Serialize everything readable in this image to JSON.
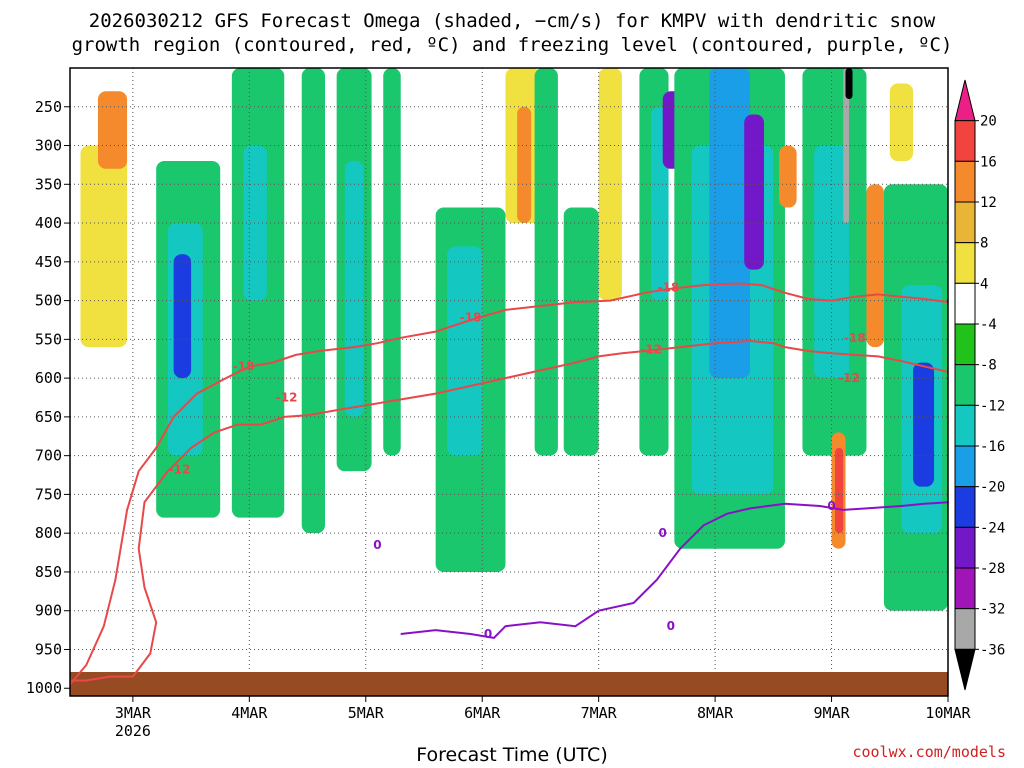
{
  "chart_data": {
    "type": "heatmap",
    "title_line1": "2026030212 GFS Forecast Omega (shaded, −cm/s) for KMPV with dendritic snow",
    "title_line2": "growth region (contoured, red, ºC) and freezing level (contoured, purple, ºC)",
    "xlabel": "Forecast Time (UTC)",
    "credit": "coolwx.com/models",
    "x_ticks": [
      {
        "label": "3MAR",
        "sub": "2026",
        "day": 3
      },
      {
        "label": "4MAR",
        "sub": "",
        "day": 4
      },
      {
        "label": "5MAR",
        "sub": "",
        "day": 5
      },
      {
        "label": "6MAR",
        "sub": "",
        "day": 6
      },
      {
        "label": "7MAR",
        "sub": "",
        "day": 7
      },
      {
        "label": "8MAR",
        "sub": "",
        "day": 8
      },
      {
        "label": "9MAR",
        "sub": "",
        "day": 9
      },
      {
        "label": "10MAR",
        "sub": "",
        "day": 10
      }
    ],
    "xlim": [
      2.46,
      10.0
    ],
    "y_ticks": [
      250,
      300,
      350,
      400,
      450,
      500,
      550,
      600,
      650,
      700,
      750,
      800,
      850,
      900,
      950,
      1000
    ],
    "ylim": [
      200,
      1000
    ],
    "colorbar": {
      "levels": [
        20,
        16,
        12,
        8,
        4,
        -4,
        -8,
        -12,
        -16,
        -20,
        -24,
        -28,
        -32,
        -36
      ],
      "colors": [
        "#ec1f86",
        "#f2443e",
        "#f58a2c",
        "#e8b535",
        "#f0e040",
        "#ffffff",
        "#21c21a",
        "#1bc76d",
        "#14c7c0",
        "#1a9ee8",
        "#1a3ce0",
        "#7318c8",
        "#a014b8",
        "#a8a8a8",
        "#000000"
      ]
    },
    "series": [
      {
        "name": "-18",
        "color": "#e84848",
        "points": [
          [
            2.46,
            995
          ],
          [
            2.6,
            970
          ],
          [
            2.75,
            920
          ],
          [
            2.85,
            860
          ],
          [
            2.95,
            770
          ],
          [
            3.05,
            720
          ],
          [
            3.2,
            690
          ],
          [
            3.35,
            650
          ],
          [
            3.55,
            620
          ],
          [
            3.8,
            600
          ],
          [
            4.0,
            585
          ],
          [
            4.2,
            580
          ],
          [
            4.4,
            570
          ],
          [
            4.6,
            565
          ],
          [
            4.9,
            560
          ],
          [
            5.1,
            555
          ],
          [
            5.3,
            548
          ],
          [
            5.6,
            540
          ],
          [
            5.9,
            525
          ],
          [
            6.2,
            512
          ],
          [
            6.5,
            507
          ],
          [
            6.8,
            502
          ],
          [
            7.1,
            500
          ],
          [
            7.4,
            490
          ],
          [
            7.6,
            485
          ],
          [
            7.9,
            480
          ],
          [
            8.2,
            478
          ],
          [
            8.4,
            480
          ],
          [
            8.5,
            485
          ],
          [
            8.6,
            490
          ],
          [
            8.8,
            498
          ],
          [
            9.0,
            500
          ],
          [
            9.2,
            495
          ],
          [
            9.4,
            492
          ],
          [
            9.6,
            495
          ],
          [
            9.8,
            498
          ],
          [
            10.0,
            502
          ]
        ]
      },
      {
        "name": "-12",
        "color": "#e84848",
        "points": [
          [
            2.46,
            990
          ],
          [
            2.6,
            990
          ],
          [
            2.8,
            985
          ],
          [
            3.0,
            985
          ],
          [
            3.15,
            955
          ],
          [
            3.2,
            915
          ],
          [
            3.1,
            870
          ],
          [
            3.05,
            820
          ],
          [
            3.1,
            760
          ],
          [
            3.3,
            720
          ],
          [
            3.5,
            690
          ],
          [
            3.7,
            670
          ],
          [
            3.9,
            660
          ],
          [
            4.1,
            660
          ],
          [
            4.3,
            650
          ],
          [
            4.5,
            648
          ],
          [
            4.8,
            640
          ],
          [
            5.0,
            635
          ],
          [
            5.2,
            630
          ],
          [
            5.4,
            625
          ],
          [
            5.6,
            620
          ],
          [
            5.9,
            610
          ],
          [
            6.2,
            600
          ],
          [
            6.5,
            590
          ],
          [
            6.8,
            580
          ],
          [
            7.0,
            572
          ],
          [
            7.2,
            568
          ],
          [
            7.4,
            565
          ],
          [
            7.7,
            560
          ],
          [
            8.0,
            555
          ],
          [
            8.3,
            552
          ],
          [
            8.5,
            555
          ],
          [
            8.6,
            560
          ],
          [
            8.8,
            565
          ],
          [
            9.0,
            568
          ],
          [
            9.2,
            570
          ],
          [
            9.4,
            572
          ],
          [
            9.6,
            578
          ],
          [
            9.8,
            585
          ],
          [
            10.0,
            592
          ]
        ]
      },
      {
        "name": "0",
        "color": "#8a10c8",
        "points": [
          [
            5.3,
            930
          ],
          [
            5.6,
            925
          ],
          [
            5.9,
            930
          ],
          [
            6.1,
            935
          ],
          [
            6.2,
            920
          ],
          [
            6.5,
            915
          ],
          [
            6.8,
            920
          ],
          [
            7.0,
            900
          ],
          [
            7.3,
            890
          ],
          [
            7.5,
            860
          ],
          [
            7.7,
            820
          ],
          [
            7.9,
            790
          ],
          [
            8.1,
            775
          ],
          [
            8.3,
            768
          ],
          [
            8.6,
            762
          ],
          [
            8.9,
            765
          ],
          [
            9.1,
            770
          ],
          [
            9.3,
            768
          ],
          [
            9.6,
            765
          ],
          [
            9.8,
            762
          ],
          [
            10.0,
            760
          ]
        ]
      }
    ],
    "contour_labels": [
      {
        "text": "-18",
        "x": 3.95,
        "p": 585,
        "color": "#e84848"
      },
      {
        "text": "-12",
        "x": 3.4,
        "p": 718,
        "color": "#e84848"
      },
      {
        "text": "-18",
        "x": 5.9,
        "p": 522,
        "color": "#e84848"
      },
      {
        "text": "-12",
        "x": 4.32,
        "p": 625,
        "color": "#e84848"
      },
      {
        "text": "-18",
        "x": 7.6,
        "p": 483,
        "color": "#e84848"
      },
      {
        "text": "-12",
        "x": 7.45,
        "p": 563,
        "color": "#e84848"
      },
      {
        "text": "-18",
        "x": 9.2,
        "p": 548,
        "color": "#e84848"
      },
      {
        "text": "-12",
        "x": 9.15,
        "p": 600,
        "color": "#e84848"
      },
      {
        "text": "0",
        "x": 5.1,
        "p": 815,
        "color": "#8a10c8"
      },
      {
        "text": "0",
        "x": 6.05,
        "p": 930,
        "color": "#8a10c8"
      },
      {
        "text": "0",
        "x": 7.55,
        "p": 800,
        "color": "#8a10c8"
      },
      {
        "text": "0",
        "x": 7.62,
        "p": 920,
        "color": "#8a10c8"
      },
      {
        "text": "0",
        "x": 9.0,
        "p": 765,
        "color": "#8a10c8"
      }
    ],
    "shaded_regions": [
      {
        "x0": 2.55,
        "x1": 2.95,
        "p0": 300,
        "p1": 560,
        "value": 6
      },
      {
        "x0": 2.7,
        "x1": 2.95,
        "p0": 230,
        "p1": 330,
        "value": 12
      },
      {
        "x0": 3.2,
        "x1": 3.75,
        "p0": 320,
        "p1": 780,
        "value": -10
      },
      {
        "x0": 3.3,
        "x1": 3.6,
        "p0": 400,
        "p1": 700,
        "value": -14
      },
      {
        "x0": 3.35,
        "x1": 3.5,
        "p0": 440,
        "p1": 600,
        "value": -22
      },
      {
        "x0": 3.85,
        "x1": 4.3,
        "p0": 200,
        "p1": 780,
        "value": -10
      },
      {
        "x0": 3.95,
        "x1": 4.15,
        "p0": 300,
        "p1": 500,
        "value": -14
      },
      {
        "x0": 4.45,
        "x1": 4.65,
        "p0": 200,
        "p1": 800,
        "value": -10
      },
      {
        "x0": 4.75,
        "x1": 5.05,
        "p0": 200,
        "p1": 720,
        "value": -10
      },
      {
        "x0": 4.82,
        "x1": 4.98,
        "p0": 320,
        "p1": 650,
        "value": -14
      },
      {
        "x0": 5.15,
        "x1": 5.3,
        "p0": 200,
        "p1": 700,
        "value": -9
      },
      {
        "x0": 5.6,
        "x1": 6.2,
        "p0": 380,
        "p1": 850,
        "value": -10
      },
      {
        "x0": 5.7,
        "x1": 6.0,
        "p0": 430,
        "p1": 700,
        "value": -14
      },
      {
        "x0": 6.2,
        "x1": 6.5,
        "p0": 200,
        "p1": 400,
        "value": 6
      },
      {
        "x0": 6.3,
        "x1": 6.42,
        "p0": 250,
        "p1": 400,
        "value": 12
      },
      {
        "x0": 6.45,
        "x1": 6.65,
        "p0": 200,
        "p1": 700,
        "value": -10
      },
      {
        "x0": 6.7,
        "x1": 7.0,
        "p0": 380,
        "p1": 700,
        "value": -10
      },
      {
        "x0": 7.0,
        "x1": 7.2,
        "p0": 200,
        "p1": 500,
        "value": 6
      },
      {
        "x0": 7.35,
        "x1": 7.6,
        "p0": 200,
        "p1": 700,
        "value": -10
      },
      {
        "x0": 7.45,
        "x1": 7.6,
        "p0": 250,
        "p1": 500,
        "value": -14
      },
      {
        "x0": 7.55,
        "x1": 7.72,
        "p0": 230,
        "p1": 330,
        "value": -26
      },
      {
        "x0": 7.65,
        "x1": 8.6,
        "p0": 200,
        "p1": 820,
        "value": -10
      },
      {
        "x0": 7.8,
        "x1": 8.5,
        "p0": 300,
        "p1": 750,
        "value": -14
      },
      {
        "x0": 7.95,
        "x1": 8.3,
        "p0": 200,
        "p1": 600,
        "value": -18
      },
      {
        "x0": 8.25,
        "x1": 8.42,
        "p0": 260,
        "p1": 460,
        "value": -26
      },
      {
        "x0": 8.55,
        "x1": 8.7,
        "p0": 300,
        "p1": 380,
        "value": 12
      },
      {
        "x0": 8.75,
        "x1": 9.3,
        "p0": 200,
        "p1": 700,
        "value": -10
      },
      {
        "x0": 8.85,
        "x1": 9.15,
        "p0": 300,
        "p1": 600,
        "value": -14
      },
      {
        "x0": 9.1,
        "x1": 9.15,
        "p0": 200,
        "p1": 400,
        "value": -34
      },
      {
        "x0": 9.12,
        "x1": 9.18,
        "p0": 200,
        "p1": 240,
        "value": -40
      },
      {
        "x0": 9.0,
        "x1": 9.12,
        "p0": 670,
        "p1": 820,
        "value": 12
      },
      {
        "x0": 9.03,
        "x1": 9.1,
        "p0": 690,
        "p1": 800,
        "value": 16
      },
      {
        "x0": 9.3,
        "x1": 9.45,
        "p0": 350,
        "p1": 560,
        "value": 12
      },
      {
        "x0": 9.45,
        "x1": 10.0,
        "p0": 350,
        "p1": 900,
        "value": -10
      },
      {
        "x0": 9.6,
        "x1": 9.95,
        "p0": 480,
        "p1": 800,
        "value": -14
      },
      {
        "x0": 9.7,
        "x1": 9.88,
        "p0": 580,
        "p1": 740,
        "value": -22
      },
      {
        "x0": 9.5,
        "x1": 9.7,
        "p0": 220,
        "p1": 320,
        "value": 6
      }
    ]
  }
}
